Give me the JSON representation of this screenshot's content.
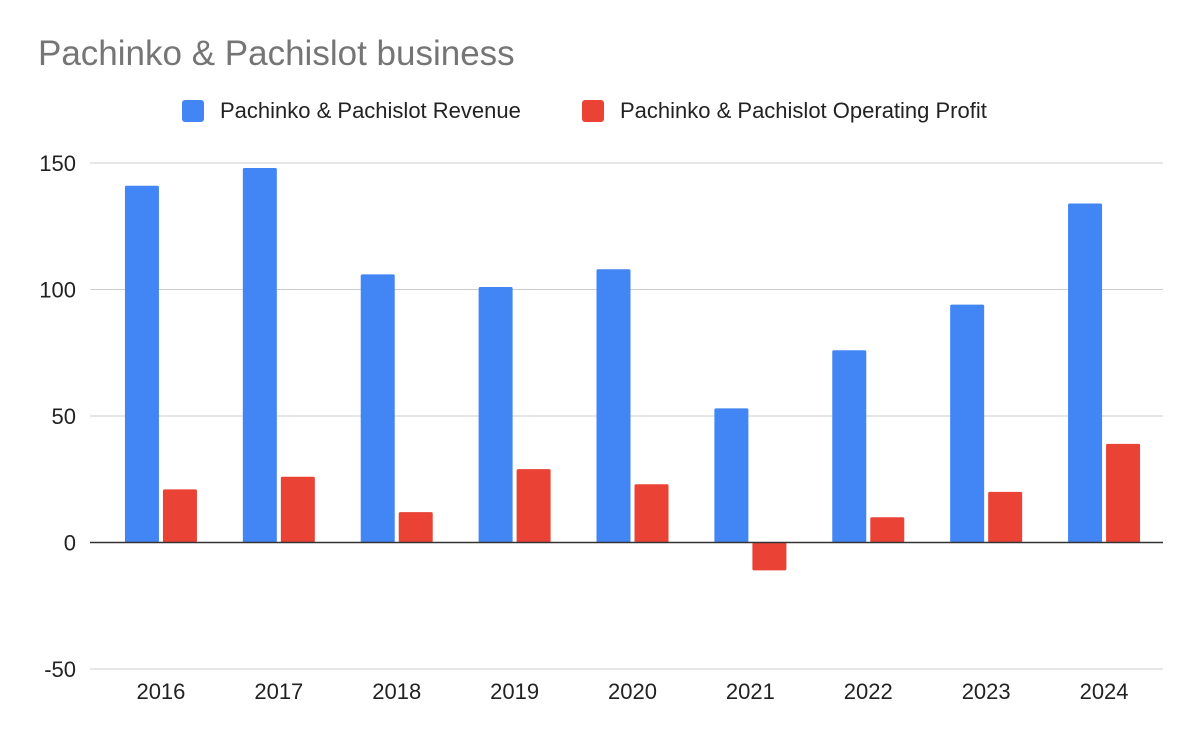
{
  "chart_data": {
    "type": "bar",
    "title": "Pachinko & Pachislot business",
    "categories": [
      "2016",
      "2017",
      "2018",
      "2019",
      "2020",
      "2021",
      "2022",
      "2023",
      "2024"
    ],
    "series": [
      {
        "name": "Pachinko & Pachislot Revenue",
        "color": "#4285F4",
        "values": [
          141,
          148,
          106,
          101,
          108,
          53,
          76,
          94,
          134
        ]
      },
      {
        "name": "Pachinko & Pachislot Operating Profit",
        "color": "#EA4335",
        "values": [
          21,
          26,
          12,
          29,
          23,
          -11,
          10,
          20,
          39
        ]
      }
    ],
    "ylim": [
      -50,
      150
    ],
    "yticks": [
      "-50",
      "0",
      "50",
      "100",
      "150"
    ],
    "xlabel": "",
    "ylabel": "",
    "grid": true,
    "legend_position": "top"
  }
}
